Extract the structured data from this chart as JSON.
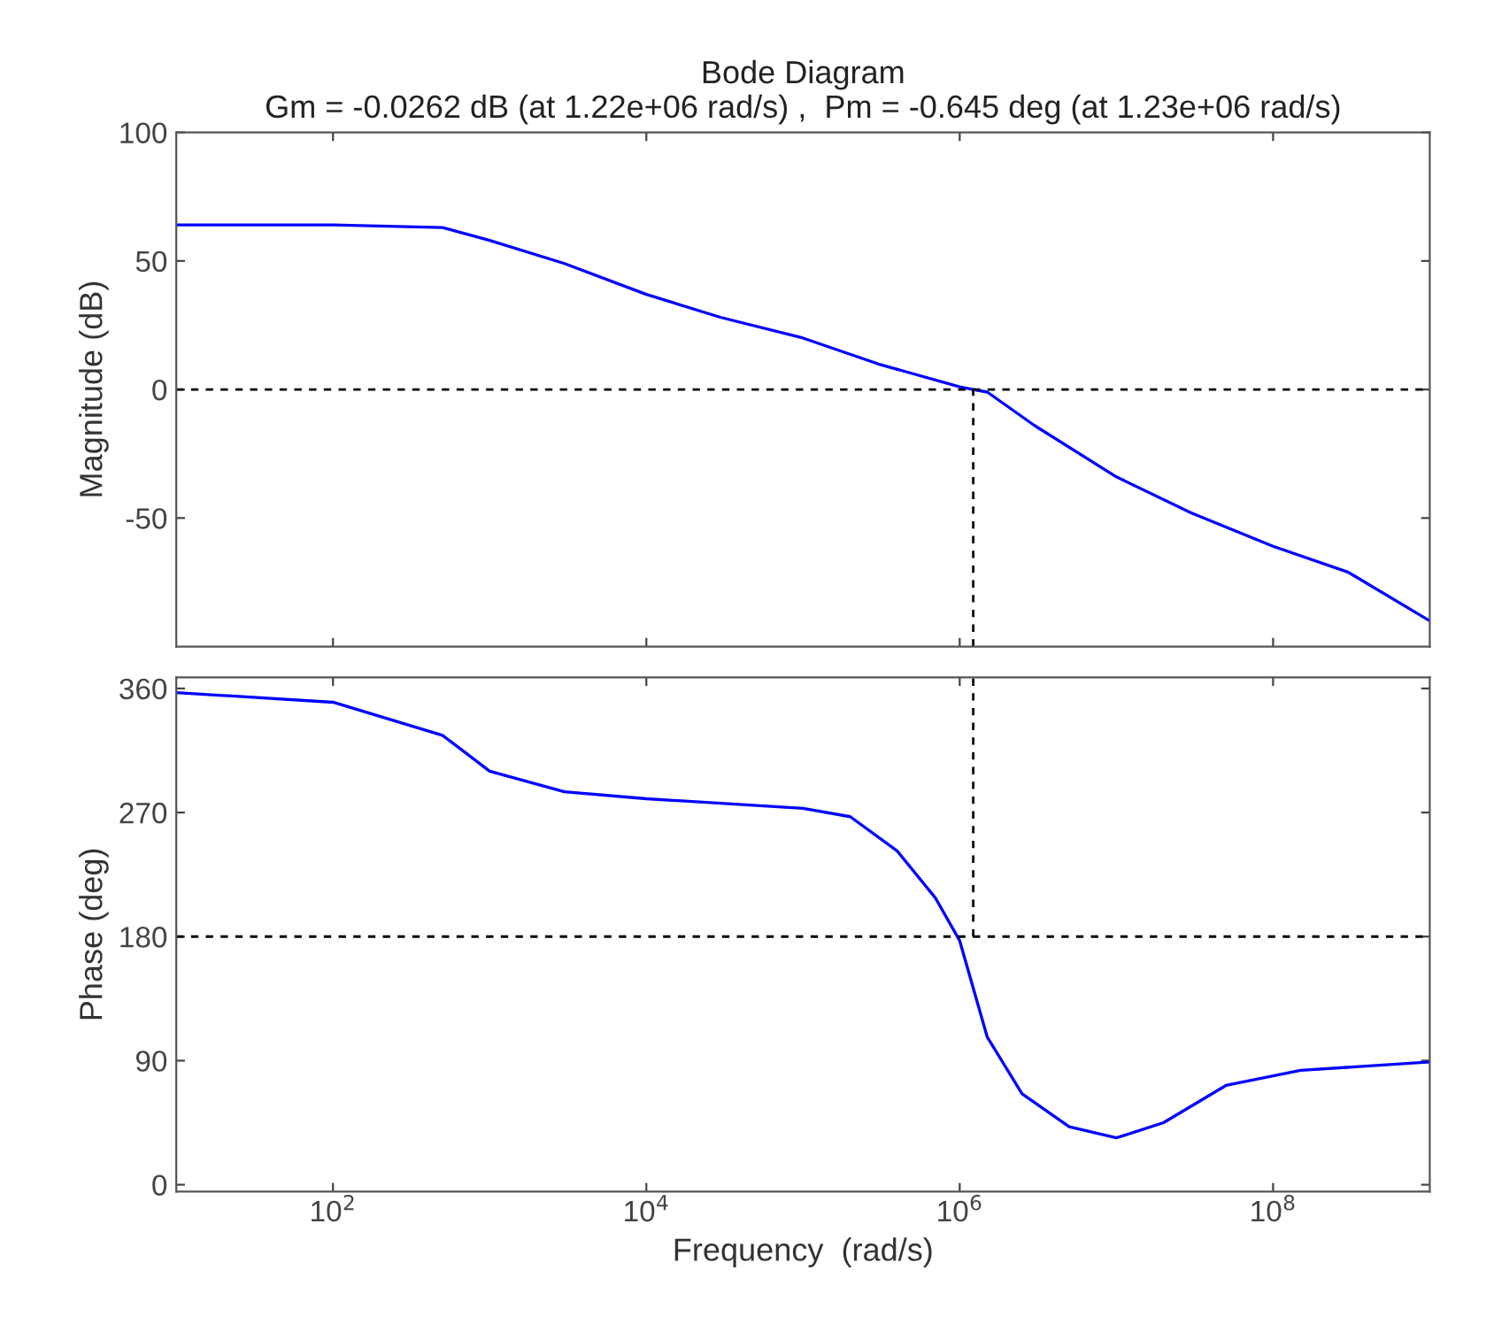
{
  "chart_data": [
    {
      "type": "line",
      "title": "Bode Diagram",
      "subtitle": "Gm = -0.0262 dB (at 1.22e+06 rad/s) ,  Pm = -0.645 deg (at 1.23e+06 rad/s)",
      "ylabel": "Magnitude (dB)",
      "log": "x",
      "x": [
        10,
        100,
        500,
        1000,
        3000,
        10000,
        30000,
        100000,
        300000,
        1000000,
        1220000,
        1500000,
        3000000,
        10000000,
        30000000,
        100000000,
        300000000,
        1000000000
      ],
      "series": [
        {
          "color": "#0000ff",
          "values": [
            64,
            64,
            63,
            58,
            49,
            37,
            28,
            20,
            10,
            1,
            0,
            -1,
            -14,
            -34,
            -48,
            -61,
            -71,
            -90
          ]
        }
      ],
      "xlim": [
        10,
        1000000000
      ],
      "ylim": [
        -100,
        100
      ],
      "yticks": [
        -50,
        0,
        50,
        100
      ],
      "xticks": [
        {
          "value": 100,
          "label": null
        },
        {
          "value": 10000,
          "label": null
        },
        {
          "value": 1000000,
          "label": null
        },
        {
          "value": 100000000,
          "label": null
        }
      ],
      "tick_labels": "y",
      "grid": false,
      "ref_lines": [
        {
          "axis": "y",
          "value": 0,
          "color": "#000000",
          "line_style": "dashed"
        },
        {
          "axis": "x",
          "value": 1220000,
          "color": "#000000",
          "line_style": "dashed"
        }
      ]
    },
    {
      "type": "line",
      "xlabel": "Frequency  (rad/s)",
      "ylabel": "Phase (deg)",
      "log": "x",
      "x": [
        10,
        100,
        500,
        1000,
        3000,
        10000,
        100000,
        200000,
        400000,
        700000,
        1000000,
        1500000,
        2500000,
        5000000,
        10000000,
        20000000,
        50000000,
        150000000,
        1000000000
      ],
      "series": [
        {
          "color": "#0000ff",
          "values": [
            357,
            350,
            326,
            300,
            285,
            280,
            273,
            267,
            242,
            208,
            177,
            107,
            66,
            42,
            34,
            45,
            72,
            83,
            89
          ]
        }
      ],
      "xlim": [
        10,
        1000000000
      ],
      "ylim": [
        -5,
        368
      ],
      "yticks": [
        0,
        90,
        180,
        270,
        360
      ],
      "xticks": [
        {
          "value": 100,
          "label": "10$^{2}$"
        },
        {
          "value": 10000,
          "label": "10$^{4}$"
        },
        {
          "value": 1000000,
          "label": "10$^{6}$"
        },
        {
          "value": 100000000,
          "label": "10$^{8}$"
        }
      ],
      "grid": false,
      "ref_lines": [
        {
          "axis": "y",
          "value": 180,
          "color": "#000000",
          "line_style": "dashed"
        },
        {
          "axis": "x",
          "value": 1220000,
          "color": "#000000",
          "line_style": "dashed"
        }
      ]
    }
  ]
}
